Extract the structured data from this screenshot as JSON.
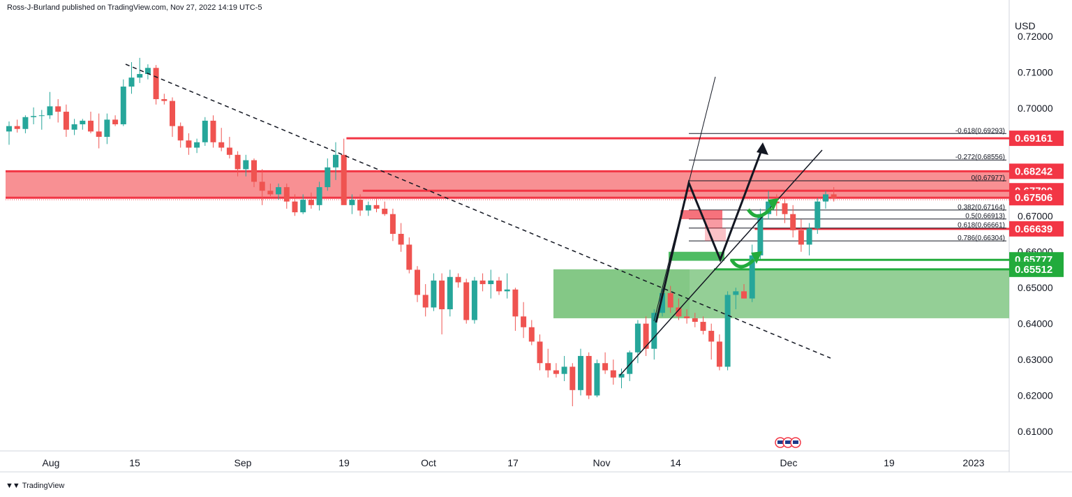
{
  "header": {
    "publisher": "Ross-J-Burland published on TradingView.com, Nov 27, 2022 14:19 UTC-5"
  },
  "footer": {
    "brand": "TradingView"
  },
  "chart_data": {
    "type": "candlestick",
    "currency_label": "USD",
    "ylim": [
      0.604,
      0.724
    ],
    "y_ticks": [
      {
        "v": 0.72,
        "label": "0.72000"
      },
      {
        "v": 0.71,
        "label": "0.71000"
      },
      {
        "v": 0.7,
        "label": "0.70000"
      },
      {
        "v": 0.67,
        "label": "0.67000"
      },
      {
        "v": 0.66,
        "label": "0.66000"
      },
      {
        "v": 0.65,
        "label": "0.65000"
      },
      {
        "v": 0.64,
        "label": "0.64000"
      },
      {
        "v": 0.63,
        "label": "0.63000"
      },
      {
        "v": 0.62,
        "label": "0.62000"
      },
      {
        "v": 0.61,
        "label": "0.61000"
      }
    ],
    "x_ticks": [
      {
        "i": 4,
        "label": "Aug"
      },
      {
        "i": 13,
        "label": "15"
      },
      {
        "i": 25,
        "label": "Sep"
      },
      {
        "i": 35,
        "label": "19"
      },
      {
        "i": 45,
        "label": "Oct"
      },
      {
        "i": 55,
        "label": "17"
      },
      {
        "i": 65,
        "label": "Nov"
      },
      {
        "i": 73,
        "label": "14"
      },
      {
        "i": 83,
        "label": "Dec"
      },
      {
        "i": 93,
        "label": "19"
      },
      {
        "i": 103,
        "label": "2023"
      }
    ],
    "colors": {
      "up": "#26a69a",
      "down": "#ef5350",
      "red_line": "#f23645",
      "green_line": "#22ab3c",
      "red_zone": "#f77c80",
      "green_zone": "#81c784"
    },
    "candles": [
      [
        0.6935,
        0.6963,
        0.6898,
        0.695
      ],
      [
        0.695,
        0.6968,
        0.6932,
        0.6942
      ],
      [
        0.6942,
        0.698,
        0.693,
        0.6975
      ],
      [
        0.6975,
        0.7002,
        0.6955,
        0.6978
      ],
      [
        0.6978,
        0.6995,
        0.694,
        0.698
      ],
      [
        0.698,
        0.7045,
        0.697,
        0.7005
      ],
      [
        0.7005,
        0.7025,
        0.696,
        0.699
      ],
      [
        0.699,
        0.701,
        0.692,
        0.694
      ],
      [
        0.694,
        0.697,
        0.6925,
        0.6955
      ],
      [
        0.6955,
        0.697,
        0.694,
        0.6965
      ],
      [
        0.6965,
        0.699,
        0.693,
        0.6935
      ],
      [
        0.6935,
        0.6985,
        0.6888,
        0.692
      ],
      [
        0.692,
        0.6985,
        0.69,
        0.6968
      ],
      [
        0.6968,
        0.698,
        0.695,
        0.6955
      ],
      [
        0.6955,
        0.708,
        0.695,
        0.706
      ],
      [
        0.706,
        0.7128,
        0.704,
        0.7085
      ],
      [
        0.7085,
        0.714,
        0.707,
        0.7095
      ],
      [
        0.7095,
        0.7122,
        0.708,
        0.7112
      ],
      [
        0.7112,
        0.712,
        0.701,
        0.7025
      ],
      [
        0.7025,
        0.704,
        0.701,
        0.702
      ],
      [
        0.702,
        0.703,
        0.692,
        0.695
      ],
      [
        0.695,
        0.696,
        0.689,
        0.691
      ],
      [
        0.691,
        0.693,
        0.687,
        0.689
      ],
      [
        0.689,
        0.6915,
        0.6875,
        0.6905
      ],
      [
        0.6905,
        0.6975,
        0.6895,
        0.6965
      ],
      [
        0.6965,
        0.698,
        0.689,
        0.6905
      ],
      [
        0.6905,
        0.6945,
        0.688,
        0.689
      ],
      [
        0.689,
        0.692,
        0.686,
        0.687
      ],
      [
        0.687,
        0.688,
        0.681,
        0.683
      ],
      [
        0.683,
        0.687,
        0.681,
        0.6855
      ],
      [
        0.6855,
        0.686,
        0.678,
        0.6795
      ],
      [
        0.6795,
        0.683,
        0.673,
        0.677
      ],
      [
        0.677,
        0.679,
        0.6755,
        0.676
      ],
      [
        0.676,
        0.679,
        0.6745,
        0.678
      ],
      [
        0.678,
        0.679,
        0.672,
        0.674
      ],
      [
        0.674,
        0.676,
        0.67,
        0.671
      ],
      [
        0.671,
        0.676,
        0.6705,
        0.6745
      ],
      [
        0.6745,
        0.6765,
        0.672,
        0.673
      ],
      [
        0.673,
        0.6795,
        0.6715,
        0.678
      ],
      [
        0.678,
        0.686,
        0.677,
        0.6835
      ],
      [
        0.6835,
        0.6905,
        0.68,
        0.687
      ],
      [
        0.687,
        0.6915,
        0.674,
        0.673
      ],
      [
        0.673,
        0.676,
        0.6705,
        0.6745
      ],
      [
        0.6745,
        0.676,
        0.67,
        0.6715
      ],
      [
        0.6715,
        0.674,
        0.67,
        0.673
      ],
      [
        0.673,
        0.675,
        0.671,
        0.672
      ],
      [
        0.672,
        0.674,
        0.67,
        0.6705
      ],
      [
        0.6705,
        0.672,
        0.663,
        0.665
      ],
      [
        0.665,
        0.668,
        0.66,
        0.662
      ],
      [
        0.662,
        0.664,
        0.654,
        0.655
      ],
      [
        0.655,
        0.656,
        0.646,
        0.648
      ],
      [
        0.648,
        0.651,
        0.642,
        0.6445
      ],
      [
        0.6445,
        0.654,
        0.6435,
        0.652
      ],
      [
        0.652,
        0.654,
        0.637,
        0.644
      ],
      [
        0.644,
        0.655,
        0.642,
        0.653
      ],
      [
        0.653,
        0.654,
        0.65,
        0.6515
      ],
      [
        0.6515,
        0.6525,
        0.64,
        0.641
      ],
      [
        0.641,
        0.653,
        0.64,
        0.652
      ],
      [
        0.652,
        0.654,
        0.649,
        0.651
      ],
      [
        0.651,
        0.655,
        0.647,
        0.652
      ],
      [
        0.652,
        0.653,
        0.648,
        0.649
      ],
      [
        0.649,
        0.654,
        0.647,
        0.6495
      ],
      [
        0.6495,
        0.65,
        0.638,
        0.642
      ],
      [
        0.642,
        0.646,
        0.636,
        0.639
      ],
      [
        0.639,
        0.641,
        0.634,
        0.635
      ],
      [
        0.635,
        0.637,
        0.627,
        0.629
      ],
      [
        0.629,
        0.633,
        0.625,
        0.627
      ],
      [
        0.627,
        0.629,
        0.625,
        0.626
      ],
      [
        0.626,
        0.631,
        0.624,
        0.628
      ],
      [
        0.628,
        0.629,
        0.617,
        0.6215
      ],
      [
        0.6215,
        0.633,
        0.62,
        0.631
      ],
      [
        0.631,
        0.632,
        0.619,
        0.62
      ],
      [
        0.62,
        0.63,
        0.6195,
        0.629
      ],
      [
        0.629,
        0.632,
        0.626,
        0.627
      ],
      [
        0.627,
        0.63,
        0.623,
        0.625
      ],
      [
        0.625,
        0.6275,
        0.622,
        0.626
      ],
      [
        0.626,
        0.6325,
        0.624,
        0.632
      ],
      [
        0.632,
        0.641,
        0.629,
        0.64
      ]
    ],
    "candles_tail": [
      [
        0.64,
        0.642,
        0.631,
        0.633
      ],
      [
        0.633,
        0.644,
        0.63,
        0.643
      ],
      [
        0.643,
        0.65,
        0.642,
        0.6485
      ],
      [
        0.6485,
        0.6505,
        0.643,
        0.6445
      ],
      [
        0.6445,
        0.647,
        0.641,
        0.642
      ],
      [
        0.642,
        0.644,
        0.64,
        0.6415
      ],
      [
        0.6415,
        0.643,
        0.639,
        0.6405
      ],
      [
        0.6405,
        0.642,
        0.637,
        0.638
      ],
      [
        0.638,
        0.64,
        0.63,
        0.635
      ],
      [
        0.635,
        0.637,
        0.627,
        0.628
      ],
      [
        0.628,
        0.649,
        0.627,
        0.648
      ],
      [
        0.648,
        0.65,
        0.644,
        0.649
      ],
      [
        0.649,
        0.651,
        0.647,
        0.647
      ],
      [
        0.647,
        0.662,
        0.646,
        0.659
      ],
      [
        0.659,
        0.672,
        0.658,
        0.6705
      ],
      [
        0.6705,
        0.677,
        0.669,
        0.674
      ],
      [
        0.674,
        0.676,
        0.67,
        0.6735
      ],
      [
        0.6735,
        0.675,
        0.668,
        0.6705
      ],
      [
        0.6705,
        0.673,
        0.664,
        0.666
      ],
      [
        0.666,
        0.669,
        0.66,
        0.662
      ],
      [
        0.662,
        0.668,
        0.659,
        0.6665
      ],
      [
        0.6665,
        0.675,
        0.665,
        0.674
      ],
      [
        0.674,
        0.677,
        0.672,
        0.676
      ],
      [
        0.676,
        0.678,
        0.674,
        0.675
      ]
    ],
    "first_index": 0,
    "levels": [
      {
        "v": 0.69161,
        "label": "0.69161",
        "color": "#f23645",
        "from_i": 42
      },
      {
        "v": 0.68242,
        "label": "0.68242",
        "color": "#f23645",
        "from_i": 0
      },
      {
        "v": 0.677,
        "label": "0.67700",
        "color": "#f23645",
        "from_i": 44
      },
      {
        "v": 0.67506,
        "label": "0.67506",
        "color": "#f23645",
        "from_i": 0
      },
      {
        "v": 0.66639,
        "label": "0.66639",
        "color": "#f23645",
        "from_i": 92
      },
      {
        "v": 0.65777,
        "label": "0.65777",
        "color": "#22ab3c",
        "from_i": 89
      },
      {
        "v": 0.65512,
        "label": "0.65512",
        "color": "#22ab3c",
        "from_i": 87
      }
    ],
    "fib_levels": [
      {
        "v": 0.69293,
        "label": "-0.618(0.69293)"
      },
      {
        "v": 0.68556,
        "label": "-0.272(0.68556)"
      },
      {
        "v": 0.67977,
        "label": "0(0.67977)"
      },
      {
        "v": 0.67164,
        "label": "0.382(0.67164)"
      },
      {
        "v": 0.66913,
        "label": "0.5(0.66913)"
      },
      {
        "v": 0.66661,
        "label": "0.618(0.66661)"
      },
      {
        "v": 0.66304,
        "label": "0.786(0.66304)"
      }
    ],
    "zones": [
      {
        "name": "red-resistance-zone",
        "from_v": 0.68242,
        "to_v": 0.67506,
        "color": "#f77c80"
      },
      {
        "name": "green-support-zone",
        "from_v": 0.65512,
        "to_v": 0.6415,
        "color": "#81c784"
      }
    ],
    "badge_colors": {
      "red": "#f23645",
      "green": "#22ab3c"
    }
  }
}
